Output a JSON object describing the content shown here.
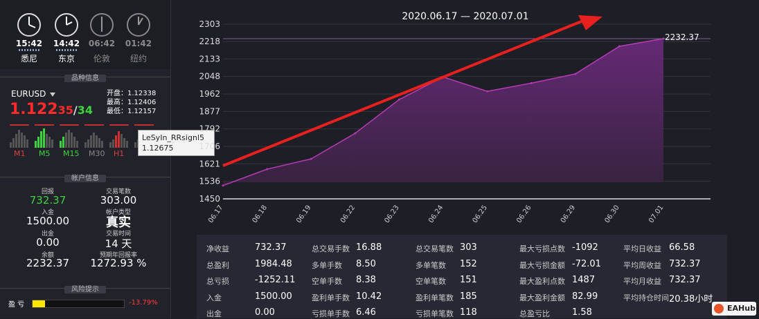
{
  "clocks": [
    {
      "time": "15:42",
      "city": "悉尼",
      "active": true
    },
    {
      "time": "14:42",
      "city": "东京",
      "active": true
    },
    {
      "time": "06:42",
      "city": "伦敦",
      "active": false
    },
    {
      "time": "01:42",
      "city": "纽约",
      "active": false
    }
  ],
  "sections": {
    "symbol": "品种信息",
    "account": "帐户信息",
    "risk": "风险提示"
  },
  "symbol": {
    "name": "EURUSD",
    "price_main": "1.122",
    "price_bid_suffix": "35",
    "price_sep": "/",
    "price_ask_suffix": "34",
    "open": "开盘：1.12338",
    "high": "最高：1.12406",
    "low": "最低：1.12157"
  },
  "timeframes": [
    "M1",
    "M5",
    "M15",
    "M30",
    "H1"
  ],
  "tooltip": {
    "name": "LeSyIn_RRsignl5",
    "value": "1.12675"
  },
  "account": {
    "return_label": "回报",
    "return_value": "732.37",
    "trades_label": "交易笔数",
    "trades_value": "303.00",
    "deposit_label": "入金",
    "deposit_value": "1500.00",
    "acct_type_label": "帐户类型",
    "acct_type_value": "真实",
    "withdraw_label": "出金",
    "withdraw_value": "0.00",
    "time_label": "交易时间",
    "time_value": "14 天",
    "balance_label": "余额",
    "balance_value": "2232.37",
    "annual_label": "预期年回报率",
    "annual_value": "1272.93 %"
  },
  "risk": {
    "label": "盈 亏",
    "percent": "-13.79%",
    "level": 0.1379
  },
  "chart_data": {
    "type": "area",
    "title": "2020.06.17 — 2020.07.01",
    "categories": [
      "06.17",
      "06.18",
      "06.19",
      "06.22",
      "06.23",
      "06.24",
      "06.25",
      "06.26",
      "06.29",
      "06.30",
      "07.01"
    ],
    "values": [
      1515,
      1595,
      1645,
      1770,
      1935,
      2045,
      1975,
      2015,
      2060,
      2195,
      2232.37
    ],
    "y_ticks": [
      "2303",
      "2218",
      "2133",
      "2048",
      "1962",
      "1877",
      "1792",
      "1706",
      "1621",
      "1536",
      "1450"
    ],
    "ylim": [
      1450,
      2303
    ],
    "end_label": "2232.37",
    "reference_line": 2232.37,
    "colors": {
      "line": "#b03ab0",
      "fill": "#5a2a6a",
      "arrow": "#e8201e"
    }
  },
  "stats": [
    [
      {
        "k": "净收益",
        "v": "732.37"
      },
      {
        "k": "总盈利",
        "v": "1984.48"
      },
      {
        "k": "总亏损",
        "v": "-1252.11"
      },
      {
        "k": "入金",
        "v": "1500.00"
      },
      {
        "k": "出金",
        "v": "0.00"
      }
    ],
    [
      {
        "k": "总交易手数",
        "v": "16.88"
      },
      {
        "k": "多单手数",
        "v": "8.50"
      },
      {
        "k": "空单手数",
        "v": "8.38"
      },
      {
        "k": "盈利单手数",
        "v": "10.42"
      },
      {
        "k": "亏损单手数",
        "v": "6.46"
      }
    ],
    [
      {
        "k": "总交易笔数",
        "v": "303"
      },
      {
        "k": "多单笔数",
        "v": "152"
      },
      {
        "k": "空单笔数",
        "v": "151"
      },
      {
        "k": "盈利单笔数",
        "v": "185"
      },
      {
        "k": "亏损单笔数",
        "v": "118"
      }
    ],
    [
      {
        "k": "最大亏损点数",
        "v": "-1092"
      },
      {
        "k": "最大亏损金额",
        "v": "-72.01"
      },
      {
        "k": "最大盈利点数",
        "v": "1487"
      },
      {
        "k": "最大盈利金额",
        "v": "82.99"
      },
      {
        "k": "总盈亏比",
        "v": "1.58"
      }
    ],
    [
      {
        "k": "平均日收益",
        "v": "66.58"
      },
      {
        "k": "平均周收益",
        "v": "732.37"
      },
      {
        "k": "平均月收益",
        "v": "732.37"
      },
      {
        "k": "平均持仓时间",
        "v": "20.38小时"
      }
    ]
  ],
  "logo": "EAHub"
}
